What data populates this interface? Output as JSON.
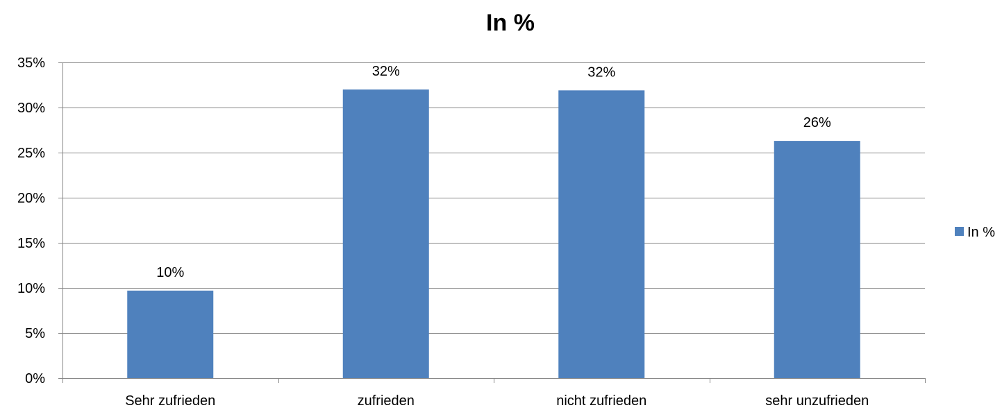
{
  "chart_data": {
    "type": "bar",
    "title": "In %",
    "xlabel": "",
    "ylabel": "",
    "categories": [
      "Sehr zufrieden",
      "zufrieden",
      "nicht zufrieden",
      "sehr unzufrieden"
    ],
    "series": [
      {
        "name": "In %",
        "values": [
          9.7,
          32.0,
          31.9,
          26.3
        ],
        "data_labels": [
          "10%",
          "32%",
          "32%",
          "26%"
        ],
        "color": "#4F81BD"
      }
    ],
    "ylim": [
      0,
      35
    ],
    "yticks": [
      0,
      5,
      10,
      15,
      20,
      25,
      30,
      35
    ],
    "ytick_labels": [
      "0%",
      "5%",
      "10%",
      "15%",
      "20%",
      "25%",
      "30%",
      "35%"
    ],
    "grid": true,
    "gridline_color": "#868686",
    "legend_position": "right"
  }
}
